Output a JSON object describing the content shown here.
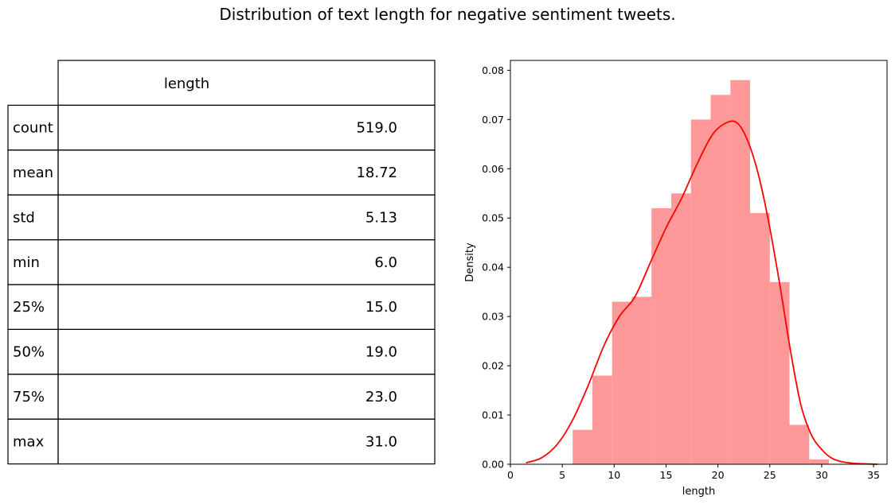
{
  "figure": {
    "title": "Distribution of text length for negative sentiment tweets."
  },
  "table": {
    "column_header": "length",
    "rows": [
      {
        "label": "count",
        "value": "519.0"
      },
      {
        "label": "mean",
        "value": "18.72"
      },
      {
        "label": "std",
        "value": "5.13"
      },
      {
        "label": "min",
        "value": "6.0"
      },
      {
        "label": "25%",
        "value": "15.0"
      },
      {
        "label": "50%",
        "value": "19.0"
      },
      {
        "label": "75%",
        "value": "23.0"
      },
      {
        "label": "max",
        "value": "31.0"
      }
    ]
  },
  "chart_data": {
    "type": "bar",
    "xlabel": "length",
    "ylabel": "Density",
    "xlim": [
      0,
      36.3
    ],
    "ylim": [
      0,
      0.082
    ],
    "xticks": [
      0,
      5,
      10,
      15,
      20,
      25,
      30,
      35
    ],
    "yticks": [
      0.0,
      0.01,
      0.02,
      0.03,
      0.04,
      0.05,
      0.06,
      0.07,
      0.08
    ],
    "ytick_labels": [
      "0.00",
      "0.01",
      "0.02",
      "0.03",
      "0.04",
      "0.05",
      "0.06",
      "0.07",
      "0.08"
    ],
    "histogram": {
      "bin_edges": [
        6.0,
        7.9,
        9.8,
        11.7,
        13.6,
        15.5,
        17.4,
        19.3,
        21.2,
        23.1,
        25.0,
        26.9,
        28.8,
        30.7
      ],
      "densities": [
        0.007,
        0.018,
        0.033,
        0.034,
        0.052,
        0.055,
        0.07,
        0.075,
        0.078,
        0.051,
        0.037,
        0.008,
        0.001
      ],
      "color": "#ff8080"
    },
    "kde": {
      "color": "#ff0000",
      "x": [
        1.5,
        3.0,
        4.5,
        6.0,
        7.5,
        9.0,
        10.5,
        12.0,
        13.5,
        15.0,
        16.5,
        18.0,
        19.5,
        21.0,
        22.0,
        23.0,
        24.0,
        25.0,
        26.0,
        27.0,
        28.0,
        29.0,
        30.0,
        31.0,
        32.0,
        33.0,
        34.0,
        35.4
      ],
      "y": [
        0.0003,
        0.0013,
        0.004,
        0.009,
        0.016,
        0.024,
        0.03,
        0.034,
        0.041,
        0.048,
        0.054,
        0.061,
        0.067,
        0.0695,
        0.069,
        0.065,
        0.058,
        0.048,
        0.036,
        0.023,
        0.012,
        0.006,
        0.003,
        0.0012,
        0.0005,
        0.0002,
        0.0001,
        0.0
      ]
    }
  }
}
